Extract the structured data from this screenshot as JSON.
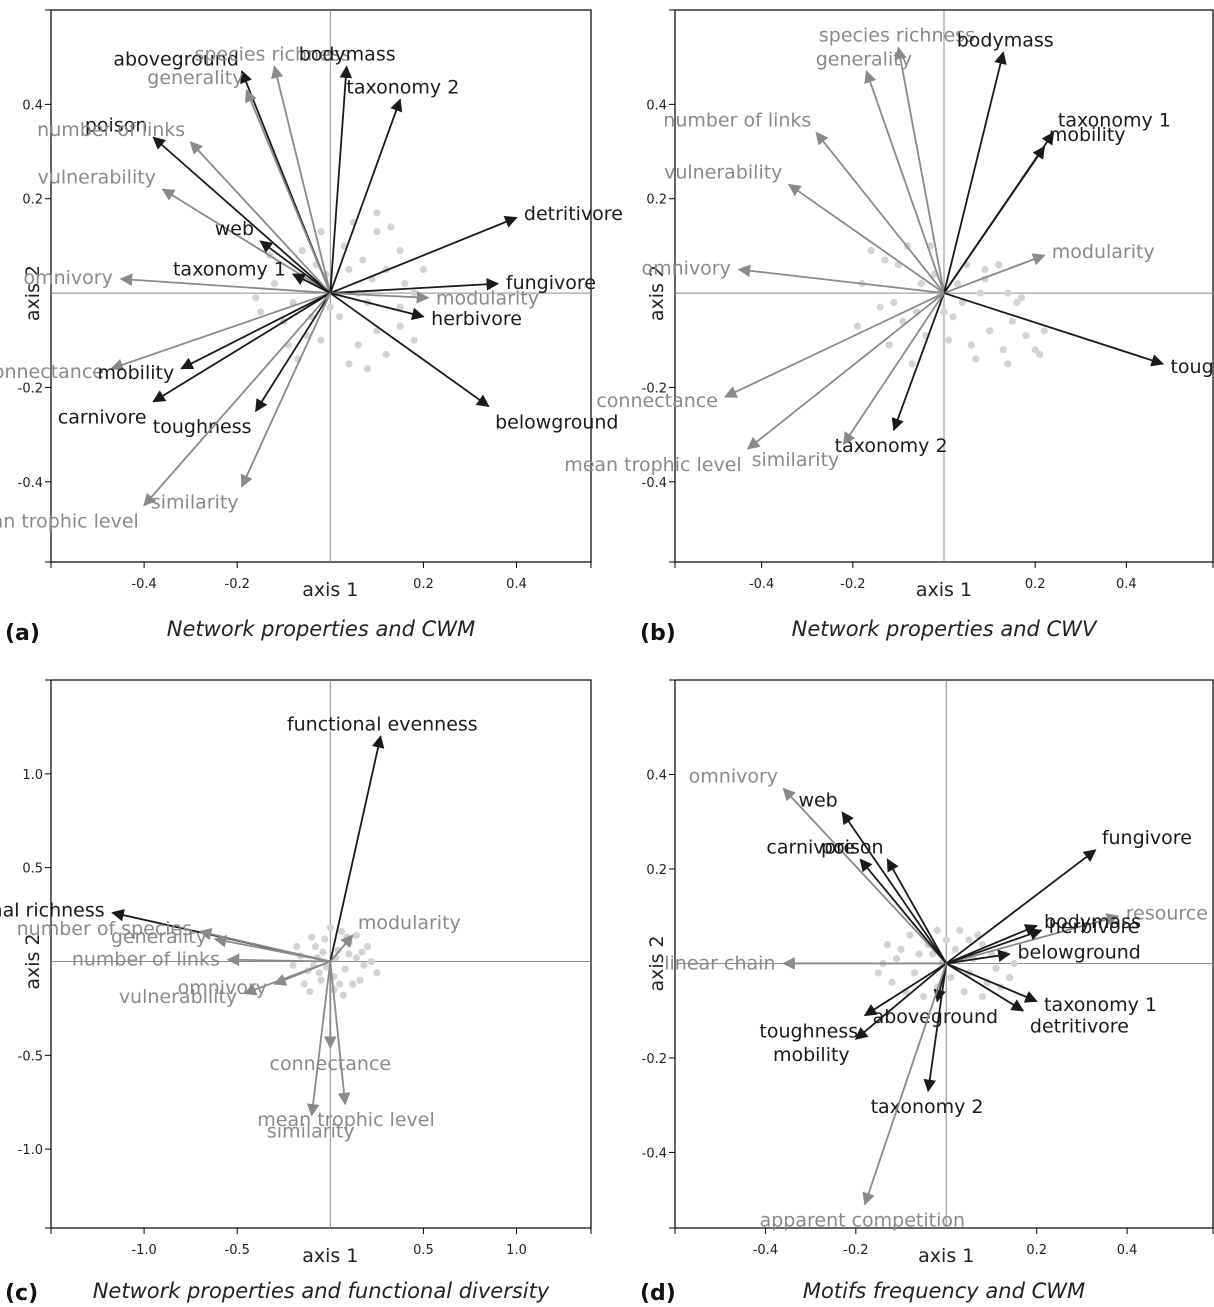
{
  "colors": {
    "dark": "#1a1a1a",
    "gray": "#8a8a8a",
    "point": "#d3d3d3"
  },
  "chart_data": [
    {
      "panel_label": "(a)",
      "subtitle": "Network properties and CWM",
      "type": "scatter",
      "xlabel": "axis 1",
      "ylabel": "axis 2",
      "xlim": [
        -0.6,
        0.56
      ],
      "ylim": [
        -0.57,
        0.6
      ],
      "xticks": [
        "-0.4",
        "-0.2",
        "0.2",
        "0.4"
      ],
      "xtick_values": [
        -0.4,
        -0.2,
        0.2,
        0.4
      ],
      "yticks": [
        "0.4",
        "0.2",
        "-0.2",
        "-0.4"
      ],
      "ytick_values": [
        0.4,
        0.2,
        -0.2,
        -0.4
      ],
      "vectors": [
        {
          "label": "aboveground",
          "x": -0.19,
          "y": 0.47,
          "color": "dark"
        },
        {
          "label": "species richness",
          "x": -0.12,
          "y": 0.48,
          "color": "gray"
        },
        {
          "label": "generality",
          "x": -0.18,
          "y": 0.43,
          "color": "gray"
        },
        {
          "label": "bodymass",
          "x": 0.035,
          "y": 0.48,
          "color": "dark"
        },
        {
          "label": "taxonomy 2",
          "x": 0.15,
          "y": 0.41,
          "color": "dark"
        },
        {
          "label": "poison",
          "x": -0.38,
          "y": 0.33,
          "color": "dark"
        },
        {
          "label": "number of links",
          "x": -0.3,
          "y": 0.32,
          "color": "gray"
        },
        {
          "label": "vulnerability",
          "x": -0.36,
          "y": 0.22,
          "color": "gray"
        },
        {
          "label": "detritivore",
          "x": 0.4,
          "y": 0.16,
          "color": "dark"
        },
        {
          "label": "web",
          "x": -0.15,
          "y": 0.11,
          "color": "dark"
        },
        {
          "label": "omnivory",
          "x": -0.45,
          "y": 0.03,
          "color": "gray"
        },
        {
          "label": "taxonomy 1",
          "x": -0.08,
          "y": 0.04,
          "color": "dark"
        },
        {
          "label": "fungivore",
          "x": 0.36,
          "y": 0.02,
          "color": "dark"
        },
        {
          "label": "modularity",
          "x": 0.21,
          "y": -0.01,
          "color": "gray"
        },
        {
          "label": "herbivore",
          "x": 0.2,
          "y": -0.05,
          "color": "dark"
        },
        {
          "label": "connectance",
          "x": -0.47,
          "y": -0.16,
          "color": "gray"
        },
        {
          "label": "mobility",
          "x": -0.32,
          "y": -0.16,
          "color": "dark"
        },
        {
          "label": "carnivore",
          "x": -0.38,
          "y": -0.23,
          "color": "dark"
        },
        {
          "label": "toughness",
          "x": -0.16,
          "y": -0.25,
          "color": "dark"
        },
        {
          "label": "belowground",
          "x": 0.34,
          "y": -0.24,
          "color": "dark"
        },
        {
          "label": "similarity",
          "x": -0.19,
          "y": -0.41,
          "color": "gray"
        },
        {
          "label": "mean trophic level",
          "x": -0.4,
          "y": -0.45,
          "color": "gray"
        }
      ],
      "points": [
        [
          -0.06,
          0.09
        ],
        [
          -0.02,
          0.13
        ],
        [
          0.05,
          0.15
        ],
        [
          0.1,
          0.13
        ],
        [
          0.12,
          0.05
        ],
        [
          0.15,
          0.09
        ],
        [
          0.09,
          0.03
        ],
        [
          0.04,
          0.05
        ],
        [
          -0.06,
          0.03
        ],
        [
          -0.08,
          -0.02
        ],
        [
          -0.1,
          -0.06
        ],
        [
          -0.05,
          -0.09
        ],
        [
          0.02,
          -0.05
        ],
        [
          0.06,
          -0.11
        ],
        [
          0.1,
          -0.08
        ],
        [
          0.15,
          -0.03
        ],
        [
          -0.12,
          0.02
        ],
        [
          -0.15,
          -0.04
        ],
        [
          0.0,
          -0.03
        ],
        [
          0.06,
          0.0
        ],
        [
          0.16,
          0.02
        ],
        [
          0.18,
          -0.1
        ],
        [
          -0.03,
          0.06
        ],
        [
          0.08,
          -0.02
        ],
        [
          0.12,
          -0.13
        ],
        [
          -0.02,
          -0.1
        ],
        [
          0.04,
          -0.15
        ],
        [
          -0.09,
          -0.11
        ],
        [
          0.1,
          0.17
        ],
        [
          0.2,
          0.05
        ],
        [
          0.07,
          0.07
        ],
        [
          -0.04,
          -0.05
        ],
        [
          0.18,
          0.0
        ],
        [
          -0.13,
          0.08
        ],
        [
          0.03,
          0.1
        ],
        [
          -0.16,
          -0.01
        ],
        [
          0.13,
          0.14
        ],
        [
          -0.07,
          -0.14
        ],
        [
          0.08,
          -0.16
        ],
        [
          0.15,
          -0.07
        ],
        [
          0.01,
          0.0
        ],
        [
          -0.01,
          0.04
        ]
      ]
    },
    {
      "panel_label": "(b)",
      "subtitle": "Network properties and CWV",
      "type": "scatter",
      "xlabel": "axis 1",
      "ylabel": "axis 2",
      "xlim": [
        -0.59,
        0.59
      ],
      "ylim": [
        -0.57,
        0.6
      ],
      "xticks": [
        "-0.4",
        "-0.2",
        "0.2",
        "0.4"
      ],
      "xtick_values": [
        -0.4,
        -0.2,
        0.2,
        0.4
      ],
      "yticks": [
        "0.4",
        "0.2",
        "-0.2",
        "-0.4"
      ],
      "ytick_values": [
        0.4,
        0.2,
        -0.2,
        -0.4
      ],
      "vectors": [
        {
          "label": "species richness",
          "x": -0.1,
          "y": 0.52,
          "color": "gray"
        },
        {
          "label": "generality",
          "x": -0.17,
          "y": 0.47,
          "color": "gray"
        },
        {
          "label": "bodymass",
          "x": 0.13,
          "y": 0.51,
          "color": "dark"
        },
        {
          "label": "taxonomy 1",
          "x": 0.24,
          "y": 0.34,
          "color": "dark"
        },
        {
          "label": "mobility",
          "x": 0.22,
          "y": 0.31,
          "color": "dark"
        },
        {
          "label": "number of links",
          "x": -0.28,
          "y": 0.34,
          "color": "gray"
        },
        {
          "label": "vulnerability",
          "x": -0.34,
          "y": 0.23,
          "color": "gray"
        },
        {
          "label": "modularity",
          "x": 0.22,
          "y": 0.08,
          "color": "gray"
        },
        {
          "label": "omnivory",
          "x": -0.45,
          "y": 0.05,
          "color": "gray"
        },
        {
          "label": "toughness",
          "x": 0.48,
          "y": -0.15,
          "color": "dark"
        },
        {
          "label": "connectance",
          "x": -0.48,
          "y": -0.22,
          "color": "gray"
        },
        {
          "label": "taxonomy 2",
          "x": -0.11,
          "y": -0.29,
          "color": "dark"
        },
        {
          "label": "similarity",
          "x": -0.22,
          "y": -0.32,
          "color": "gray"
        },
        {
          "label": "mean trophic level",
          "x": -0.43,
          "y": -0.33,
          "color": "gray"
        }
      ],
      "points": [
        [
          -0.13,
          0.07
        ],
        [
          -0.08,
          0.1
        ],
        [
          -0.02,
          0.04
        ],
        [
          0.05,
          0.06
        ],
        [
          0.09,
          0.03
        ],
        [
          0.14,
          0.0
        ],
        [
          0.17,
          -0.01
        ],
        [
          -0.18,
          0.02
        ],
        [
          -0.14,
          -0.03
        ],
        [
          -0.09,
          -0.06
        ],
        [
          -0.04,
          -0.09
        ],
        [
          0.02,
          -0.05
        ],
        [
          0.06,
          -0.11
        ],
        [
          0.1,
          -0.08
        ],
        [
          0.15,
          -0.06
        ],
        [
          0.2,
          -0.12
        ],
        [
          -0.12,
          -0.11
        ],
        [
          -0.07,
          -0.15
        ],
        [
          0.01,
          -0.1
        ],
        [
          0.07,
          -0.14
        ],
        [
          0.13,
          -0.12
        ],
        [
          0.18,
          -0.09
        ],
        [
          -0.01,
          0.0
        ],
        [
          0.03,
          0.02
        ],
        [
          -0.05,
          0.02
        ],
        [
          0.09,
          0.05
        ],
        [
          -0.19,
          -0.07
        ],
        [
          0.04,
          -0.02
        ],
        [
          -0.1,
          0.06
        ],
        [
          0.12,
          0.06
        ],
        [
          0.22,
          -0.08
        ],
        [
          -0.16,
          0.09
        ],
        [
          -0.03,
          0.1
        ],
        [
          0.0,
          -0.04
        ],
        [
          0.16,
          -0.02
        ],
        [
          -0.06,
          -0.04
        ],
        [
          0.08,
          0.0
        ],
        [
          -0.11,
          -0.02
        ],
        [
          0.14,
          -0.15
        ],
        [
          0.21,
          -0.13
        ]
      ]
    },
    {
      "panel_label": "(c)",
      "subtitle": "Network properties and functional diversity",
      "type": "scatter",
      "xlabel": "axis 1",
      "ylabel": "axis 2",
      "xlim": [
        -1.5,
        1.4
      ],
      "ylim": [
        -1.42,
        1.5
      ],
      "xticks": [
        "-1.0",
        "-0.5",
        "0.5",
        "1.0"
      ],
      "xtick_values": [
        -1.0,
        -0.5,
        0.5,
        1.0
      ],
      "yticks": [
        "1.0",
        "0.5",
        "-0.5",
        "-1.0"
      ],
      "ytick_values": [
        1.0,
        0.5,
        -0.5,
        -1.0
      ],
      "vectors": [
        {
          "label": "functional evenness",
          "x": 0.27,
          "y": 1.2,
          "color": "dark"
        },
        {
          "label": "functional richness",
          "x": -1.17,
          "y": 0.26,
          "color": "dark"
        },
        {
          "label": "number of species",
          "x": -0.7,
          "y": 0.16,
          "color": "gray"
        },
        {
          "label": "generality",
          "x": -0.62,
          "y": 0.12,
          "color": "gray"
        },
        {
          "label": "number of links",
          "x": -0.55,
          "y": 0.01,
          "color": "gray"
        },
        {
          "label": "modularity",
          "x": 0.12,
          "y": 0.14,
          "color": "gray"
        },
        {
          "label": "omnivory",
          "x": -0.3,
          "y": -0.12,
          "color": "gray"
        },
        {
          "label": "vulnerability",
          "x": -0.46,
          "y": -0.17,
          "color": "gray"
        },
        {
          "label": "connectance",
          "x": 0.0,
          "y": -0.46,
          "color": "gray"
        },
        {
          "label": "mean trophic level",
          "x": 0.08,
          "y": -0.76,
          "color": "gray"
        },
        {
          "label": "similarity",
          "x": -0.1,
          "y": -0.82,
          "color": "gray"
        }
      ],
      "points": [
        [
          -0.08,
          0.08
        ],
        [
          -0.03,
          0.12
        ],
        [
          0.04,
          0.06
        ],
        [
          0.1,
          0.1
        ],
        [
          0.14,
          0.02
        ],
        [
          0.08,
          -0.04
        ],
        [
          0.02,
          -0.08
        ],
        [
          -0.05,
          -0.1
        ],
        [
          -0.12,
          -0.05
        ],
        [
          -0.16,
          0.03
        ],
        [
          -0.1,
          0.13
        ],
        [
          0.06,
          0.16
        ],
        [
          0.18,
          -0.02
        ],
        [
          0.12,
          -0.12
        ],
        [
          -0.02,
          -0.03
        ],
        [
          0.03,
          0.02
        ],
        [
          -0.07,
          0.02
        ],
        [
          0.2,
          0.08
        ],
        [
          0.16,
          -0.1
        ],
        [
          -0.14,
          -0.12
        ],
        [
          0.0,
          0.18
        ],
        [
          0.07,
          -0.18
        ],
        [
          -0.2,
          -0.02
        ],
        [
          0.22,
          0.0
        ],
        [
          -0.04,
          0.05
        ],
        [
          0.1,
          0.04
        ],
        [
          0.05,
          -0.12
        ],
        [
          -0.11,
          -0.16
        ],
        [
          0.14,
          0.14
        ],
        [
          -0.18,
          0.08
        ],
        [
          0.02,
          -0.15
        ],
        [
          -0.06,
          -0.06
        ],
        [
          0.25,
          -0.06
        ],
        [
          0.09,
          0.13
        ],
        [
          -0.09,
          -0.02
        ],
        [
          0.17,
          0.05
        ]
      ]
    },
    {
      "panel_label": "(d)",
      "subtitle": "Motifs frequency and CWM",
      "type": "scatter",
      "xlabel": "axis 1",
      "ylabel": "axis 2",
      "xlim": [
        -0.6,
        0.59
      ],
      "ylim": [
        -0.56,
        0.6
      ],
      "xticks": [
        "-0.4",
        "-0.2",
        "0.2",
        "0.4"
      ],
      "xtick_values": [
        -0.4,
        -0.2,
        0.2,
        0.4
      ],
      "yticks": [
        "0.4",
        "0.2",
        "-0.2",
        "-0.4"
      ],
      "ytick_values": [
        0.4,
        0.2,
        -0.2,
        -0.4
      ],
      "vectors": [
        {
          "label": "omnivory",
          "x": -0.36,
          "y": 0.37,
          "color": "gray"
        },
        {
          "label": "web",
          "x": -0.23,
          "y": 0.32,
          "color": "dark"
        },
        {
          "label": "carnivore",
          "x": -0.19,
          "y": 0.22,
          "color": "dark"
        },
        {
          "label": "poison",
          "x": -0.13,
          "y": 0.22,
          "color": "dark"
        },
        {
          "label": "fungivore",
          "x": 0.33,
          "y": 0.24,
          "color": "dark"
        },
        {
          "label": "resource competition",
          "x": 0.38,
          "y": 0.1,
          "color": "gray"
        },
        {
          "label": "bodymass",
          "x": 0.2,
          "y": 0.08,
          "color": "dark"
        },
        {
          "label": "herbivore",
          "x": 0.21,
          "y": 0.07,
          "color": "dark"
        },
        {
          "label": "belowground",
          "x": 0.14,
          "y": 0.02,
          "color": "dark"
        },
        {
          "label": "linear chain",
          "x": -0.36,
          "y": 0.0,
          "color": "gray"
        },
        {
          "label": "taxonomy 1",
          "x": 0.2,
          "y": -0.08,
          "color": "dark"
        },
        {
          "label": "toughness",
          "x": -0.18,
          "y": -0.11,
          "color": "dark"
        },
        {
          "label": "aboveground",
          "x": -0.02,
          "y": -0.08,
          "color": "dark"
        },
        {
          "label": "detritivore",
          "x": 0.17,
          "y": -0.1,
          "color": "dark"
        },
        {
          "label": "mobility",
          "x": -0.2,
          "y": -0.16,
          "color": "dark"
        },
        {
          "label": "taxonomy 2",
          "x": -0.04,
          "y": -0.27,
          "color": "dark"
        },
        {
          "label": "apparent competition",
          "x": -0.18,
          "y": -0.51,
          "color": "gray"
        }
      ],
      "points": [
        [
          -0.14,
          0.0
        ],
        [
          -0.1,
          0.03
        ],
        [
          -0.07,
          -0.02
        ],
        [
          -0.04,
          0.04
        ],
        [
          -0.02,
          -0.05
        ],
        [
          0.02,
          0.03
        ],
        [
          0.05,
          -0.02
        ],
        [
          0.08,
          0.04
        ],
        [
          0.11,
          -0.01
        ],
        [
          0.13,
          0.02
        ],
        [
          -0.12,
          -0.04
        ],
        [
          -0.08,
          0.06
        ],
        [
          0.0,
          0.05
        ],
        [
          0.04,
          -0.06
        ],
        [
          0.09,
          -0.04
        ],
        [
          -0.05,
          -0.07
        ],
        [
          0.06,
          0.01
        ],
        [
          -0.01,
          0.0
        ],
        [
          0.03,
          0.07
        ],
        [
          -0.09,
          -0.06
        ],
        [
          0.12,
          -0.05
        ],
        [
          -0.13,
          0.04
        ],
        [
          0.07,
          0.06
        ],
        [
          0.1,
          0.02
        ],
        [
          -0.03,
          0.02
        ],
        [
          0.01,
          -0.03
        ],
        [
          -0.06,
          0.02
        ],
        [
          0.15,
          0.0
        ],
        [
          -0.15,
          -0.02
        ],
        [
          0.05,
          0.05
        ],
        [
          -0.11,
          0.01
        ],
        [
          0.08,
          -0.07
        ],
        [
          -0.02,
          0.07
        ],
        [
          0.14,
          -0.03
        ]
      ]
    }
  ]
}
